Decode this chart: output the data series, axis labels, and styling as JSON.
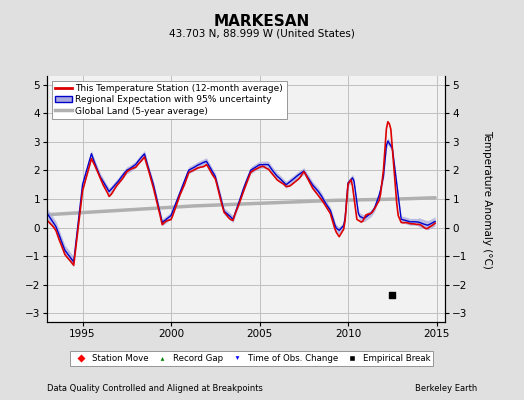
{
  "title": "MARKESAN",
  "subtitle": "43.703 N, 88.999 W (United States)",
  "ylabel": "Temperature Anomaly (°C)",
  "footer_left": "Data Quality Controlled and Aligned at Breakpoints",
  "footer_right": "Berkeley Earth",
  "xlim": [
    1993.0,
    2015.5
  ],
  "ylim": [
    -3.3,
    5.3
  ],
  "yticks": [
    -3,
    -2,
    -1,
    0,
    1,
    2,
    3,
    4,
    5
  ],
  "xticks": [
    1995,
    2000,
    2005,
    2010,
    2015
  ],
  "bg_color": "#e0e0e0",
  "plot_bg_color": "#f2f2f2",
  "grid_color": "#c0c0c0",
  "station_color": "#dd0000",
  "regional_color": "#0000cc",
  "regional_fill_color": "#aaaadd",
  "global_color": "#b0b0b0",
  "empirical_break_x": 2012.5,
  "empirical_break_y": -2.35
}
